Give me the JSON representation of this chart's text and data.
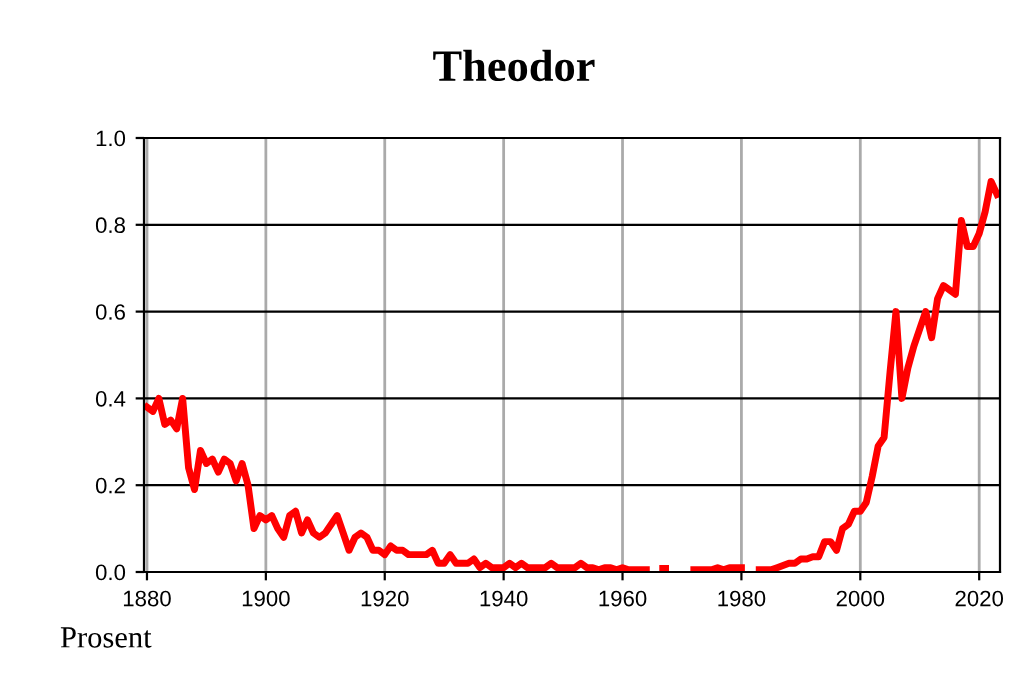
{
  "chart_data": {
    "type": "line",
    "title": "Theodor",
    "annotations": [
      "Prosent"
    ],
    "x": [
      1880,
      1881,
      1882,
      1883,
      1884,
      1885,
      1886,
      1887,
      1888,
      1889,
      1890,
      1891,
      1892,
      1893,
      1894,
      1895,
      1896,
      1897,
      1898,
      1899,
      1900,
      1901,
      1902,
      1903,
      1904,
      1905,
      1906,
      1907,
      1908,
      1909,
      1910,
      1911,
      1912,
      1913,
      1914,
      1915,
      1916,
      1917,
      1918,
      1919,
      1920,
      1921,
      1922,
      1923,
      1924,
      1925,
      1926,
      1927,
      1928,
      1929,
      1930,
      1931,
      1932,
      1933,
      1934,
      1935,
      1936,
      1937,
      1938,
      1939,
      1940,
      1941,
      1942,
      1943,
      1944,
      1945,
      1946,
      1947,
      1948,
      1949,
      1950,
      1951,
      1952,
      1953,
      1954,
      1955,
      1956,
      1957,
      1958,
      1959,
      1960,
      1961,
      1962,
      1963,
      1964,
      1965,
      1966,
      1967,
      1968,
      1969,
      1970,
      1971,
      1972,
      1973,
      1974,
      1975,
      1976,
      1977,
      1978,
      1979,
      1980,
      1981,
      1982,
      1983,
      1984,
      1985,
      1986,
      1987,
      1988,
      1989,
      1990,
      1991,
      1992,
      1993,
      1994,
      1995,
      1996,
      1997,
      1998,
      1999,
      2000,
      2001,
      2002,
      2003,
      2004,
      2005,
      2006,
      2007,
      2008,
      2009,
      2010,
      2011,
      2012,
      2013,
      2014,
      2015,
      2016,
      2017,
      2018,
      2019,
      2020,
      2021,
      2022,
      2023
    ],
    "series": [
      {
        "color": "#ff0000",
        "values": [
          0.38,
          0.37,
          0.4,
          0.34,
          0.35,
          0.33,
          0.4,
          0.24,
          0.19,
          0.28,
          0.25,
          0.26,
          0.23,
          0.26,
          0.25,
          0.21,
          0.25,
          0.2,
          0.1,
          0.13,
          0.12,
          0.13,
          0.1,
          0.08,
          0.13,
          0.14,
          0.09,
          0.12,
          0.09,
          0.08,
          0.09,
          0.11,
          0.13,
          0.09,
          0.05,
          0.08,
          0.09,
          0.08,
          0.05,
          0.05,
          0.04,
          0.06,
          0.05,
          0.05,
          0.04,
          0.04,
          0.04,
          0.04,
          0.05,
          0.02,
          0.02,
          0.04,
          0.02,
          0.02,
          0.02,
          0.03,
          0.01,
          0.02,
          0.01,
          0.01,
          0.01,
          0.02,
          0.01,
          0.02,
          0.01,
          0.01,
          0.01,
          0.01,
          0.02,
          0.01,
          0.01,
          0.01,
          0.01,
          0.02,
          0.01,
          0.01,
          0.005,
          0.01,
          0.01,
          0.005,
          0.01,
          0.005,
          0.005,
          0.005,
          0.005,
          null,
          null,
          0.005,
          null,
          null,
          null,
          null,
          0.005,
          0.005,
          0.005,
          0.005,
          0.01,
          0.005,
          0.01,
          0.01,
          0.01,
          null,
          null,
          0.005,
          0.005,
          0.005,
          0.01,
          0.015,
          0.02,
          0.02,
          0.03,
          0.03,
          0.035,
          0.035,
          0.07,
          0.07,
          0.05,
          0.1,
          0.11,
          0.14,
          0.14,
          0.16,
          0.22,
          0.29,
          0.31,
          0.46,
          0.6,
          0.4,
          0.47,
          0.52,
          0.56,
          0.6,
          0.54,
          0.63,
          0.66,
          0.65,
          0.64,
          0.81,
          0.75,
          0.75,
          0.78,
          0.83,
          0.9,
          0.87
        ]
      }
    ],
    "xlim": [
      1879.5,
      2023.5
    ],
    "ylim": [
      0,
      1.0
    ],
    "xticks": [
      1880,
      1900,
      1920,
      1940,
      1960,
      1980,
      2000,
      2020
    ],
    "yticks": [
      {
        "value": 0,
        "label": "0.0"
      },
      {
        "value": 0.2,
        "label": "0.2"
      },
      {
        "value": 0.4,
        "label": "0.4"
      },
      {
        "value": 0.6,
        "label": "0.6"
      },
      {
        "value": 0.8,
        "label": "0.8"
      },
      {
        "value": 1.0,
        "label": "1.0"
      }
    ],
    "grid": true,
    "marker": "none",
    "line_style": "solid"
  }
}
